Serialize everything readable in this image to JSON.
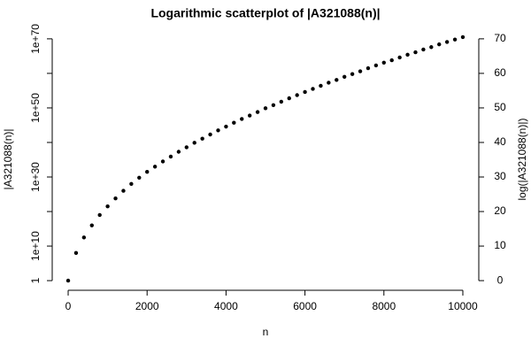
{
  "chart_data": {
    "type": "scatter",
    "title": "Logarithmic scatterplot of |A321088(n)|",
    "xlabel": "n",
    "ylabel": "|A321088(n)|",
    "y2label": "log(|A321088(n)|)",
    "xlim": [
      -404,
      10404
    ],
    "xticks": [
      0,
      2000,
      4000,
      6000,
      8000,
      10000
    ],
    "ylim": [
      0.0016,
      2e+73
    ],
    "yscale": "log",
    "yticks": [
      1,
      {
        "value": 10000000000.0,
        "label": "1e+10"
      },
      {
        "value": 1e+20,
        "label": null
      },
      {
        "value": 1e+30,
        "label": "1e+30"
      },
      {
        "value": 1e+40,
        "label": null
      },
      {
        "value": 1e+50,
        "label": "1e+50"
      },
      {
        "value": 1e+60,
        "label": null
      },
      {
        "value": 1e+70,
        "label": "1e+70"
      }
    ],
    "y2lim": [
      -2.796,
      73.3
    ],
    "y2ticks": [
      0,
      10,
      20,
      30,
      40,
      50,
      60,
      70
    ],
    "series": [
      {
        "axis": "y2",
        "color": "#000000",
        "x": [
          0,
          200,
          400,
          600,
          800,
          1000,
          1200,
          1400,
          1600,
          1800,
          2000,
          2200,
          2400,
          2600,
          2800,
          3000,
          3200,
          3400,
          3600,
          3800,
          4000,
          4200,
          4400,
          4600,
          4800,
          5000,
          5200,
          5400,
          5600,
          5800,
          6000,
          6200,
          6400,
          6600,
          6800,
          7000,
          7200,
          7400,
          7600,
          7800,
          8000,
          8200,
          8400,
          8600,
          8800,
          9000,
          9200,
          9400,
          9600,
          9800,
          10000
        ],
        "values": [
          0,
          8.0,
          12.5,
          16.0,
          19.0,
          21.5,
          23.8,
          26.0,
          28.0,
          29.8,
          31.5,
          33.0,
          34.5,
          35.9,
          37.3,
          38.6,
          39.9,
          41.1,
          42.3,
          43.5,
          44.6,
          45.7,
          46.8,
          47.8,
          48.8,
          49.9,
          50.8,
          51.8,
          52.8,
          53.7,
          54.6,
          55.5,
          56.4,
          57.3,
          58.1,
          59.0,
          59.8,
          60.6,
          61.5,
          62.3,
          63.1,
          63.8,
          64.6,
          65.4,
          66.1,
          66.9,
          67.6,
          68.4,
          69.1,
          69.8,
          70.5
        ]
      }
    ]
  }
}
